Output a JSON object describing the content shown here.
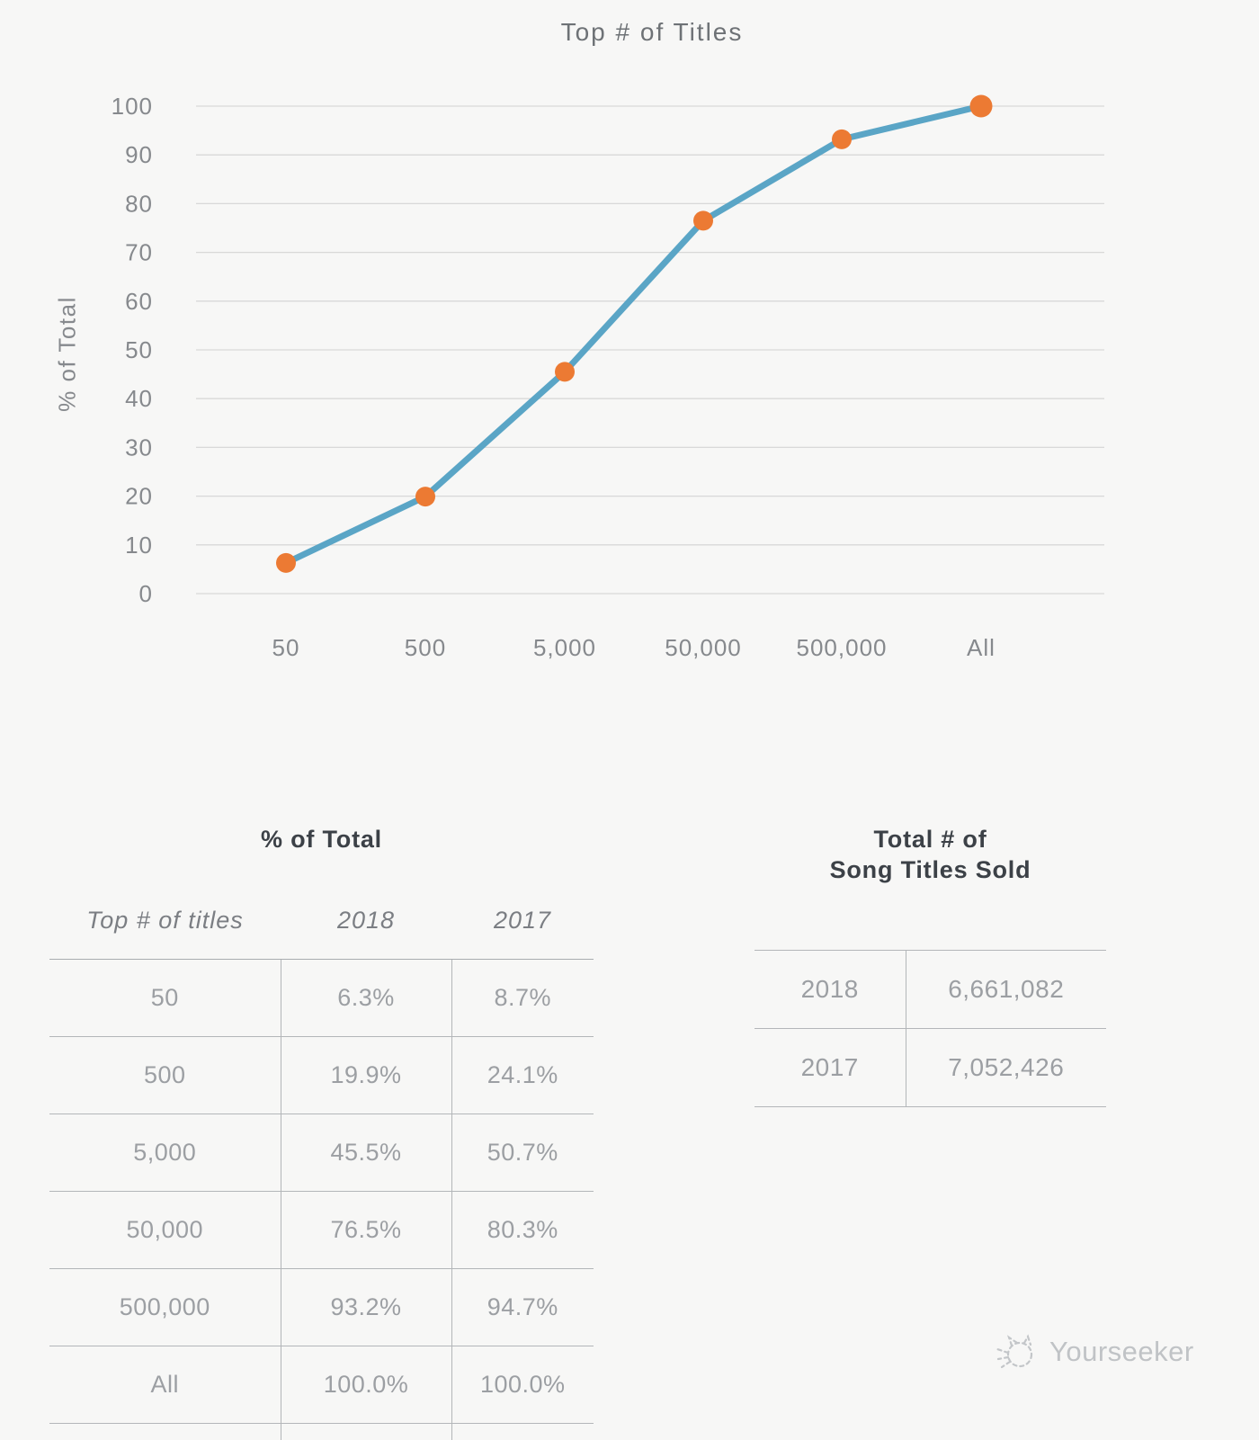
{
  "chart_data": {
    "type": "line",
    "title": "Top # of Titles",
    "xlabel": "",
    "ylabel": "% of Total",
    "categories": [
      "50",
      "500",
      "5,000",
      "50,000",
      "500,000",
      "All"
    ],
    "series": [
      {
        "name": "2018",
        "values": [
          6.3,
          19.9,
          45.5,
          76.5,
          93.2,
          100.0
        ]
      }
    ],
    "ylim": [
      0,
      100
    ],
    "yticks": [
      0,
      10,
      20,
      30,
      40,
      50,
      60,
      70,
      80,
      90,
      100
    ],
    "grid": true,
    "legend": false,
    "line_color": "#5aa5c6",
    "marker_color": "#ec7a33",
    "grid_color": "#d8d8d8"
  },
  "tables": {
    "percent": {
      "title": "% of Total",
      "headers": [
        "Top # of titles",
        "2018",
        "2017"
      ],
      "rows": [
        [
          "50",
          "6.3%",
          "8.7%"
        ],
        [
          "500",
          "19.9%",
          "24.1%"
        ],
        [
          "5,000",
          "45.5%",
          "50.7%"
        ],
        [
          "50,000",
          "76.5%",
          "80.3%"
        ],
        [
          "500,000",
          "93.2%",
          "94.7%"
        ],
        [
          "All",
          "100.0%",
          "100.0%"
        ]
      ]
    },
    "totals": {
      "title_line1": "Total # of",
      "title_line2": "Song Titles Sold",
      "rows": [
        [
          "2018",
          "6,661,082"
        ],
        [
          "2017",
          "7,052,426"
        ]
      ]
    }
  },
  "watermark": {
    "text": "Yourseeker"
  }
}
